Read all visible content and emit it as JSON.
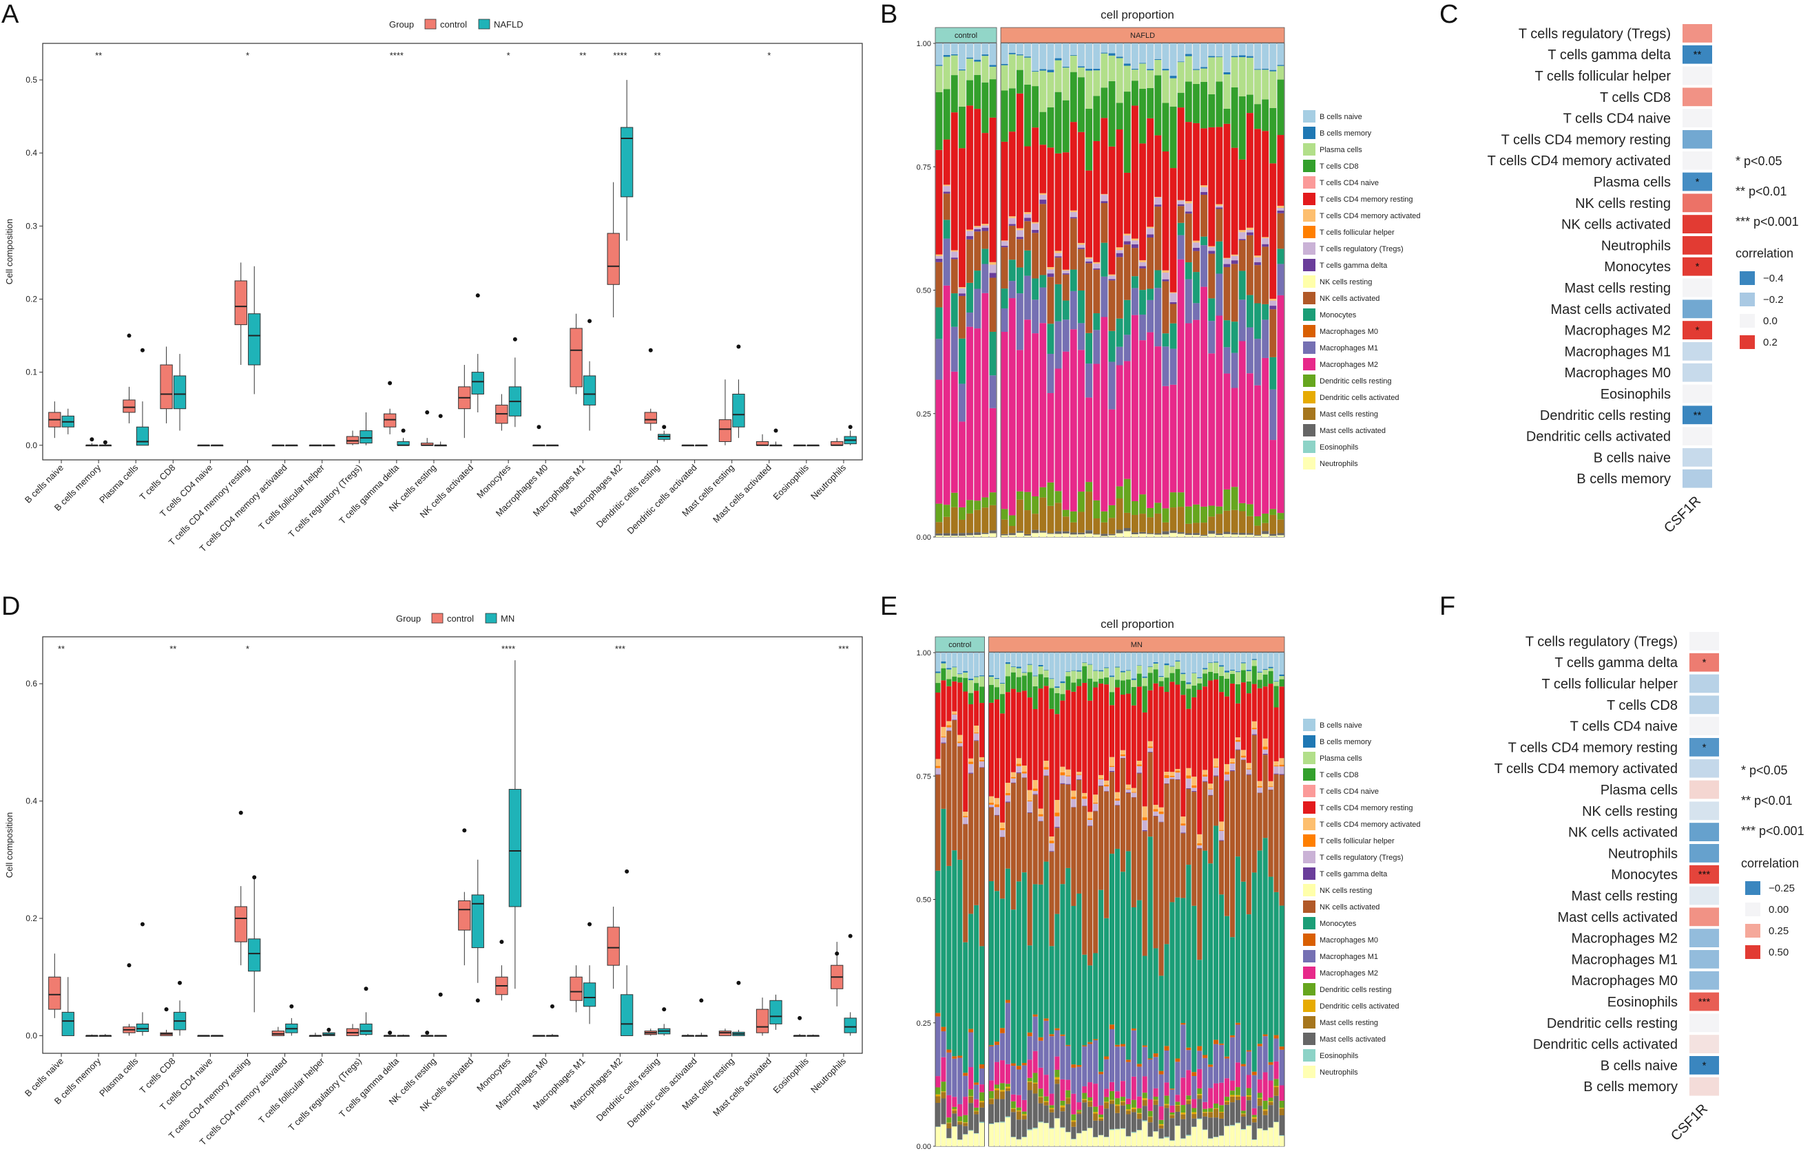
{
  "panels": {
    "A": "A",
    "B": "B",
    "C": "C",
    "D": "D",
    "E": "E",
    "F": "F"
  },
  "colors": {
    "control": "#F07C70",
    "case": "#1FB3B8",
    "heat_neg_strong": "#3A86BF",
    "heat_neg_weak": "#A9C9E3",
    "heat_zero": "#F4F4F6",
    "heat_pos_weak": "#F5A89A",
    "heat_pos_strong": "#E23B33",
    "strip_control": "#92D6C8",
    "strip_case": "#F0977A"
  },
  "cell_types": [
    "B cells naive",
    "B cells memory",
    "Plasma cells",
    "T cells CD8",
    "T cells CD4 naive",
    "T cells CD4 memory resting",
    "T cells CD4 memory activated",
    "T cells follicular helper",
    "T cells regulatory (Tregs)",
    "T cells gamma delta",
    "NK cells resting",
    "NK cells activated",
    "Monocytes",
    "Macrophages M0",
    "Macrophages M1",
    "Macrophages M2",
    "Dendritic cells resting",
    "Dendritic cells activated",
    "Mast cells resting",
    "Mast cells activated",
    "Eosinophils",
    "Neutrophils"
  ],
  "cell_type_colors": [
    "#A6CEE3",
    "#1F78B4",
    "#B2DF8A",
    "#33A02C",
    "#FB9A99",
    "#E31A1C",
    "#FDBF6F",
    "#FF7F00",
    "#CAB2D6",
    "#6A3D9A",
    "#FFFFAA",
    "#B15928",
    "#1B9E77",
    "#D95F02",
    "#7570B3",
    "#E7298A",
    "#66A61E",
    "#E6AB02",
    "#A6761D",
    "#666666",
    "#8DD3C7",
    "#FFFFB3"
  ],
  "chart_data": [
    {
      "panel": "A",
      "type": "boxplot",
      "legend_title": "Group",
      "legend": [
        "control",
        "NAFLD"
      ],
      "ylabel": "Cell composition",
      "yticks": [
        "0.0",
        "0.1",
        "0.2",
        "0.3",
        "0.4",
        "0.5"
      ],
      "ylim": [
        -0.02,
        0.55
      ],
      "significance": [
        "",
        "**",
        "",
        "",
        "",
        "*",
        "",
        "",
        "",
        "****",
        "",
        "",
        "*",
        "",
        "**",
        "****",
        "**",
        "",
        "",
        "*",
        "",
        ""
      ],
      "boxes_control": [
        [
          0.01,
          0.025,
          0.035,
          0.045,
          0.06
        ],
        [
          0,
          0,
          0,
          0,
          0.003
        ],
        [
          0.03,
          0.045,
          0.052,
          0.062,
          0.08
        ],
        [
          0.03,
          0.05,
          0.07,
          0.11,
          0.135
        ],
        [
          0,
          0,
          0,
          0,
          0
        ],
        [
          0.11,
          0.165,
          0.19,
          0.225,
          0.25
        ],
        [
          0,
          0,
          0,
          0,
          0
        ],
        [
          0,
          0,
          0,
          0,
          0
        ],
        [
          0,
          0.002,
          0.006,
          0.012,
          0.02
        ],
        [
          0.015,
          0.025,
          0.035,
          0.043,
          0.05
        ],
        [
          0,
          0,
          0,
          0.003,
          0.01
        ],
        [
          0.01,
          0.05,
          0.065,
          0.08,
          0.11
        ],
        [
          0.02,
          0.03,
          0.043,
          0.055,
          0.07
        ],
        [
          0,
          0,
          0,
          0,
          0
        ],
        [
          0.07,
          0.08,
          0.13,
          0.16,
          0.18
        ],
        [
          0.175,
          0.22,
          0.245,
          0.29,
          0.36
        ],
        [
          0.02,
          0.03,
          0.035,
          0.045,
          0.05
        ],
        [
          0,
          0,
          0,
          0,
          0
        ],
        [
          0,
          0.005,
          0.022,
          0.035,
          0.09
        ],
        [
          0,
          0,
          0,
          0.005,
          0.015
        ],
        [
          0,
          0,
          0,
          0,
          0
        ],
        [
          0,
          0,
          0,
          0.005,
          0.01
        ]
      ],
      "boxes_case": [
        [
          0.015,
          0.025,
          0.032,
          0.04,
          0.05
        ],
        [
          0,
          0,
          0,
          0,
          0.003
        ],
        [
          0,
          0,
          0.005,
          0.025,
          0.06
        ],
        [
          0.02,
          0.05,
          0.07,
          0.095,
          0.125
        ],
        [
          0,
          0,
          0,
          0,
          0
        ],
        [
          0.07,
          0.11,
          0.15,
          0.18,
          0.245
        ],
        [
          0,
          0,
          0,
          0,
          0
        ],
        [
          0,
          0,
          0,
          0,
          0
        ],
        [
          0,
          0.003,
          0.01,
          0.02,
          0.045
        ],
        [
          0,
          0,
          0,
          0.005,
          0.01
        ],
        [
          0,
          0,
          0,
          0,
          0.005
        ],
        [
          0.045,
          0.07,
          0.087,
          0.1,
          0.125
        ],
        [
          0.025,
          0.04,
          0.06,
          0.08,
          0.12
        ],
        [
          0,
          0,
          0,
          0,
          0
        ],
        [
          0.02,
          0.055,
          0.07,
          0.095,
          0.115
        ],
        [
          0.28,
          0.34,
          0.42,
          0.435,
          0.5
        ],
        [
          0.005,
          0.008,
          0.012,
          0.015,
          0.02
        ],
        [
          0,
          0,
          0,
          0,
          0
        ],
        [
          0.01,
          0.025,
          0.042,
          0.07,
          0.09
        ],
        [
          0,
          0,
          0,
          0,
          0.005
        ],
        [
          0,
          0,
          0,
          0,
          0
        ],
        [
          0,
          0.002,
          0.007,
          0.012,
          0.02
        ]
      ],
      "outliers_control": [
        [],
        [
          0.008
        ],
        [
          0.15
        ],
        [],
        [],
        [],
        [],
        [],
        [],
        [
          0.085
        ],
        [
          0.045
        ],
        [],
        [],
        [
          0.025
        ],
        [],
        [],
        [
          0.13
        ],
        [],
        [],
        [],
        [],
        []
      ],
      "outliers_case": [
        [],
        [
          0.004
        ],
        [
          0.13
        ],
        [],
        [],
        [],
        [],
        [],
        [],
        [
          0.02
        ],
        [
          0.04
        ],
        [
          0.205
        ],
        [
          0.145
        ],
        [],
        [
          0.17
        ],
        [],
        [
          0.025
        ],
        [],
        [
          0.135
        ],
        [
          0.02
        ],
        [],
        [
          0.025
        ]
      ]
    },
    {
      "panel": "D",
      "type": "boxplot",
      "legend_title": "Group",
      "legend": [
        "control",
        "MN"
      ],
      "ylabel": "Cell composition",
      "yticks": [
        "0.0",
        "0.2",
        "0.4",
        "0.6"
      ],
      "ylim": [
        -0.03,
        0.68
      ],
      "significance": [
        "**",
        "",
        "",
        "**",
        "",
        "*",
        "",
        "",
        "",
        "",
        "",
        "",
        "****",
        "",
        "",
        "***",
        "",
        "",
        "",
        "",
        "",
        "***"
      ],
      "boxes_control": [
        [
          0.03,
          0.045,
          0.07,
          0.1,
          0.14
        ],
        [
          0,
          0,
          0,
          0,
          0.002
        ],
        [
          0,
          0.005,
          0.01,
          0.015,
          0.02
        ],
        [
          0,
          0,
          0.003,
          0.005,
          0.01
        ],
        [
          0,
          0,
          0,
          0,
          0
        ],
        [
          0.12,
          0.16,
          0.2,
          0.22,
          0.255
        ],
        [
          0,
          0,
          0.003,
          0.008,
          0.015
        ],
        [
          0,
          0,
          0,
          0,
          0.005
        ],
        [
          0,
          0,
          0.005,
          0.012,
          0.02
        ],
        [
          0,
          0,
          0,
          0,
          0
        ],
        [
          0,
          0,
          0,
          0,
          0
        ],
        [
          0.12,
          0.18,
          0.215,
          0.23,
          0.245
        ],
        [
          0.06,
          0.07,
          0.085,
          0.1,
          0.12
        ],
        [
          0,
          0,
          0,
          0,
          0
        ],
        [
          0.04,
          0.06,
          0.075,
          0.1,
          0.12
        ],
        [
          0.08,
          0.12,
          0.15,
          0.185,
          0.22
        ],
        [
          0,
          0.002,
          0.005,
          0.008,
          0.012
        ],
        [
          0,
          0,
          0,
          0,
          0.003
        ],
        [
          0,
          0,
          0.005,
          0.008,
          0.012
        ],
        [
          0,
          0.005,
          0.015,
          0.045,
          0.065
        ],
        [
          0,
          0,
          0,
          0,
          0.003
        ],
        [
          0.05,
          0.08,
          0.1,
          0.12,
          0.16
        ]
      ],
      "boxes_case": [
        [
          0,
          0,
          0.025,
          0.04,
          0.1
        ],
        [
          0,
          0,
          0,
          0,
          0.003
        ],
        [
          0,
          0.007,
          0.012,
          0.02,
          0.04
        ],
        [
          0,
          0.01,
          0.025,
          0.04,
          0.06
        ],
        [
          0,
          0,
          0,
          0,
          0
        ],
        [
          0.04,
          0.11,
          0.14,
          0.165,
          0.27
        ],
        [
          0,
          0.005,
          0.012,
          0.02,
          0.03
        ],
        [
          0,
          0,
          0.002,
          0.005,
          0.01
        ],
        [
          0,
          0.002,
          0.008,
          0.02,
          0.04
        ],
        [
          0,
          0,
          0,
          0,
          0.002
        ],
        [
          0,
          0,
          0,
          0,
          0
        ],
        [
          0.09,
          0.15,
          0.225,
          0.24,
          0.3
        ],
        [
          0.08,
          0.22,
          0.315,
          0.42,
          0.64
        ],
        [
          0,
          0,
          0,
          0,
          0.003
        ],
        [
          0.02,
          0.05,
          0.065,
          0.09,
          0.12
        ],
        [
          0,
          0,
          0.02,
          0.07,
          0.12
        ],
        [
          0,
          0.003,
          0.008,
          0.012,
          0.02
        ],
        [
          0,
          0,
          0,
          0,
          0.005
        ],
        [
          0,
          0,
          0.003,
          0.006,
          0.01
        ],
        [
          0.01,
          0.02,
          0.033,
          0.06,
          0.07
        ],
        [
          0,
          0,
          0,
          0,
          0.002
        ],
        [
          0,
          0.005,
          0.015,
          0.03,
          0.04
        ]
      ],
      "outliers_control": [
        [],
        [],
        [
          0.12
        ],
        [
          0.045
        ],
        [],
        [
          0.38
        ],
        [],
        [],
        [],
        [
          0.005
        ],
        [
          0.005
        ],
        [
          0.35
        ],
        [
          0.16
        ],
        [],
        [],
        [],
        [],
        [],
        [],
        [],
        [
          0.03
        ],
        [
          0.14
        ]
      ],
      "outliers_case": [
        [],
        [],
        [
          0.19
        ],
        [
          0.09
        ],
        [],
        [
          0.27
        ],
        [
          0.05
        ],
        [
          0.01
        ],
        [
          0.08
        ],
        [],
        [
          0.07
        ],
        [
          0.06
        ],
        [],
        [
          0.05
        ],
        [
          0.19
        ],
        [
          0.28
        ],
        [
          0.045
        ],
        [
          0.06
        ],
        [
          0.09
        ],
        [],
        [],
        [
          0.17
        ]
      ]
    },
    {
      "panel": "B",
      "type": "stacked-bar",
      "title": "cell proportion",
      "groups": [
        {
          "name": "control",
          "count": 8
        },
        {
          "name": "NAFLD",
          "count": 37
        }
      ],
      "yticks": [
        "0.00",
        "0.25",
        "0.50",
        "0.75",
        "1.00"
      ],
      "mean_proportions": [
        0.04,
        0.003,
        0.05,
        0.08,
        0.0,
        0.19,
        0.003,
        0.0,
        0.01,
        0.005,
        0.0,
        0.08,
        0.05,
        0.0,
        0.07,
        0.34,
        0.03,
        0.0,
        0.04,
        0.004,
        0.0,
        0.005
      ]
    },
    {
      "panel": "E",
      "type": "stacked-bar",
      "title": "cell proportion",
      "groups": [
        {
          "name": "control",
          "count": 9
        },
        {
          "name": "MN",
          "count": 54
        }
      ],
      "yticks": [
        "0.00",
        "0.25",
        "0.50",
        "0.75",
        "1.00"
      ],
      "mean_proportions": [
        0.03,
        0.002,
        0.015,
        0.025,
        0.0,
        0.15,
        0.01,
        0.003,
        0.01,
        0.001,
        0.0,
        0.21,
        0.3,
        0.005,
        0.065,
        0.03,
        0.01,
        0.002,
        0.01,
        0.035,
        0.001,
        0.03
      ]
    },
    {
      "panel": "C",
      "type": "heatmap",
      "column": "CSF1R",
      "rows": [
        "T cells regulatory (Tregs)",
        "T cells gamma delta",
        "T cells follicular helper",
        "T cells CD8",
        "T cells CD4 naive",
        "T cells CD4 memory resting",
        "T cells CD4 memory activated",
        "Plasma cells",
        "NK cells resting",
        "NK cells activated",
        "Neutrophils",
        "Monocytes",
        "Mast cells resting",
        "Mast cells activated",
        "Macrophages M2",
        "Macrophages M1",
        "Macrophages M0",
        "Eosinophils",
        "Dendritic cells resting",
        "Dendritic cells activated",
        "B cells naive",
        "B cells memory"
      ],
      "values": [
        0.12,
        -0.42,
        0.0,
        0.12,
        0.0,
        -0.3,
        0.0,
        -0.38,
        0.15,
        0.2,
        0.22,
        0.3,
        0.0,
        -0.3,
        0.3,
        -0.12,
        -0.12,
        0.0,
        -0.45,
        0.0,
        -0.12,
        -0.18
      ],
      "stars": [
        "",
        "**",
        "",
        "",
        "",
        "",
        "",
        "*",
        "",
        "",
        "",
        "*",
        "",
        "",
        "*",
        "",
        "",
        "",
        "**",
        "",
        "",
        ""
      ],
      "significance_legend": [
        "* p<0.05",
        "** p<0.01",
        "*** p<0.001"
      ],
      "legend_title": "correlation",
      "legend_ticks": [
        "−0.4",
        "−0.2",
        "0.0",
        "0.2"
      ],
      "legend_values": [
        -0.4,
        -0.2,
        0.0,
        0.2
      ]
    },
    {
      "panel": "F",
      "type": "heatmap",
      "column": "CSF1R",
      "rows": [
        "T cells regulatory (Tregs)",
        "T cells gamma delta",
        "T cells follicular helper",
        "T cells CD8",
        "T cells CD4 naive",
        "T cells CD4 memory resting",
        "T cells CD4 memory activated",
        "Plasma cells",
        "NK cells resting",
        "NK cells activated",
        "Neutrophils",
        "Monocytes",
        "Mast cells resting",
        "Mast cells activated",
        "Macrophages M2",
        "Macrophages M1",
        "Macrophages M0",
        "Eosinophils",
        "Dendritic cells resting",
        "Dendritic cells activated",
        "B cells naive",
        "B cells memory"
      ],
      "values": [
        0.0,
        0.35,
        -0.1,
        -0.1,
        0.0,
        -0.22,
        -0.08,
        0.1,
        -0.05,
        -0.2,
        -0.2,
        0.48,
        -0.03,
        0.3,
        -0.15,
        -0.15,
        -0.15,
        0.42,
        0.0,
        0.06,
        -0.25,
        0.08
      ],
      "stars": [
        "",
        "*",
        "",
        "",
        "",
        "*",
        "",
        "",
        "",
        "",
        "",
        "***",
        "",
        "",
        "",
        "",
        "",
        "***",
        "",
        "",
        "*",
        ""
      ],
      "significance_legend": [
        "* p<0.05",
        "** p<0.01",
        "*** p<0.001"
      ],
      "legend_title": "correlation",
      "legend_ticks": [
        "−0.25",
        "0.00",
        "0.25",
        "0.50"
      ],
      "legend_values": [
        -0.25,
        0.0,
        0.25,
        0.5
      ]
    }
  ]
}
